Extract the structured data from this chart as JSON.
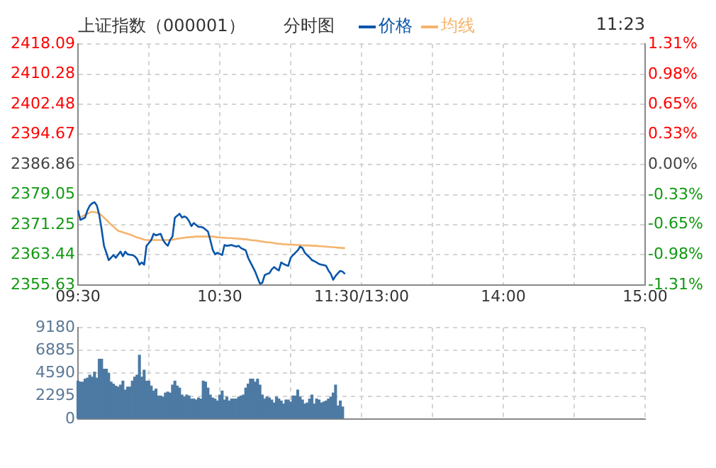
{
  "chart_data": [
    {
      "type": "line",
      "title": "上证指数（000001）",
      "subtitle": "分时图",
      "annotations": [
        "11:23"
      ],
      "legend": "top",
      "grid": true,
      "categories": [
        "09:30",
        null,
        null,
        null,
        null,
        null,
        null,
        null,
        null,
        null,
        null,
        null,
        null,
        null,
        null,
        null,
        null,
        null,
        null,
        null,
        null,
        null,
        null,
        null,
        null,
        null,
        null,
        null,
        null,
        null,
        null,
        null,
        null,
        null,
        null,
        null,
        null,
        null,
        null,
        null,
        null,
        null,
        null,
        null,
        null,
        null,
        null,
        null,
        null,
        null,
        null,
        null,
        null,
        null,
        null,
        null,
        null,
        null,
        null,
        null,
        "10:30",
        null,
        null,
        null,
        null,
        null,
        null,
        null,
        null,
        null,
        null,
        null,
        null,
        null,
        null,
        null,
        null,
        null,
        null,
        null,
        null,
        null,
        null,
        null,
        null,
        null,
        null,
        null,
        null,
        null,
        null,
        null,
        null,
        null,
        null,
        null,
        null,
        null,
        null,
        null,
        null,
        null,
        null,
        null,
        null,
        null,
        null,
        null,
        null,
        null,
        null,
        null,
        null,
        null,
        null,
        null,
        null,
        null,
        null,
        null,
        "11:30/13:00",
        null,
        null,
        null,
        null,
        null,
        null,
        null,
        null,
        null,
        null,
        null,
        null,
        null,
        null,
        null,
        null,
        null,
        null,
        null,
        null,
        null,
        null,
        null,
        null,
        null,
        null,
        null,
        null,
        null,
        null,
        null,
        null,
        null,
        null,
        null,
        null,
        null,
        null,
        null,
        null,
        null,
        null,
        null,
        null,
        null,
        null,
        null,
        null,
        null,
        null,
        null,
        null,
        null,
        null,
        null,
        null,
        null,
        null,
        null,
        "14:00",
        null,
        null,
        null,
        null,
        null,
        null,
        null,
        null,
        null,
        null,
        null,
        null,
        null,
        null,
        null,
        null,
        null,
        null,
        null,
        null,
        null,
        null,
        null,
        null,
        null,
        null,
        null,
        null,
        null,
        null,
        null,
        null,
        null,
        null,
        null,
        null,
        null,
        null,
        null,
        null,
        null,
        null,
        null,
        null,
        null,
        null,
        null,
        null,
        null,
        null,
        null,
        null,
        null,
        null,
        null,
        null,
        null,
        null,
        null,
        "15:00"
      ],
      "ylim": [
        2355.63,
        2418.09
      ],
      "yticks": [
        2355.63,
        2363.44,
        2371.25,
        2379.05,
        2386.86,
        2394.67,
        2402.48,
        2410.28,
        2418.09
      ],
      "y2lim": [
        -1.31,
        1.31
      ],
      "y2ticks": [
        {
          "value": -1.31,
          "label": "-1.31%"
        },
        {
          "value": -0.98,
          "label": "-0.98%"
        },
        {
          "value": -0.65,
          "label": "-0.65%"
        },
        {
          "value": -0.33,
          "label": "-0.33%"
        },
        {
          "value": 0,
          "label": "0.00%"
        },
        {
          "value": 0.33,
          "label": "0.33%"
        },
        {
          "value": 0.65,
          "label": "0.65%"
        },
        {
          "value": 0.98,
          "label": "0.98%"
        },
        {
          "value": 1.31,
          "label": "1.31%"
        }
      ],
      "series": [
        {
          "name": "价格",
          "color": "#0a56a8",
          "values": [
            2375.0,
            2372.5,
            2372.8,
            2373.1,
            2375.0,
            2376.2,
            2376.8,
            2377.1,
            2376.2,
            2373.8,
            2370.1,
            2365.8,
            2364.0,
            2362.1,
            2362.7,
            2363.4,
            2362.7,
            2363.5,
            2364.3,
            2363.1,
            2364.3,
            2363.6,
            2363.5,
            2363.4,
            2363.1,
            2362.4,
            2360.9,
            2361.5,
            2360.9,
            2365.8,
            2366.5,
            2367.3,
            2368.9,
            2368.5,
            2368.7,
            2368.9,
            2367.3,
            2366.4,
            2365.8,
            2367.3,
            2368.2,
            2373.1,
            2373.6,
            2374.1,
            2373.1,
            2373.4,
            2373.1,
            2372.2,
            2370.9,
            2371.7,
            2371.2,
            2370.7,
            2370.7,
            2370.5,
            2370.0,
            2369.5,
            2367.3,
            2364.8,
            2363.6,
            2364.0,
            2363.7,
            2363.4,
            2366.0,
            2365.8,
            2365.9,
            2366.0,
            2365.8,
            2365.6,
            2365.8,
            2365.2,
            2364.9,
            2364.6,
            2362.7,
            2361.5,
            2360.3,
            2359.1,
            2357.5,
            2356.0,
            2356.2,
            2358.2,
            2358.5,
            2358.7,
            2359.7,
            2360.3,
            2359.8,
            2359.4,
            2361.5,
            2361.1,
            2360.8,
            2360.6,
            2362.7,
            2363.4,
            2364.0,
            2364.6,
            2365.6,
            2365.2,
            2364.0,
            2363.4,
            2362.8,
            2362.1,
            2361.8,
            2361.5,
            2361.1,
            2360.9,
            2360.8,
            2360.6,
            2359.4,
            2358.5,
            2357.0,
            2358.0,
            2358.7,
            2359.3,
            2359.1,
            2358.5,
            null,
            null,
            null,
            null,
            null,
            null,
            null,
            null,
            null,
            null,
            null,
            null,
            null,
            null,
            null,
            null,
            null,
            null,
            null,
            null,
            null,
            null,
            null,
            null,
            null,
            null,
            null,
            null,
            null,
            null,
            null,
            null,
            null,
            null,
            null,
            null,
            null,
            null,
            null,
            null,
            null,
            null,
            null,
            null,
            null,
            null,
            null,
            null,
            null,
            null,
            null,
            null,
            null,
            null,
            null,
            null,
            null,
            null,
            null,
            null,
            null,
            null,
            null,
            null,
            null,
            null,
            null,
            null,
            null,
            null,
            null,
            null,
            null,
            null,
            null,
            null,
            null,
            null,
            null,
            null,
            null,
            null,
            null,
            null,
            null,
            null,
            null,
            null,
            null,
            null,
            null,
            null,
            null,
            null,
            null,
            null,
            null,
            null,
            null,
            null,
            null,
            null,
            null,
            null,
            null,
            null,
            null,
            null,
            null,
            null,
            null,
            null,
            null,
            null,
            null,
            null,
            null,
            null,
            null,
            null,
            null,
            null,
            null,
            null,
            null,
            null,
            null
          ]
        },
        {
          "name": "均线",
          "color": "#f5b46e",
          "values": [
            2373.1,
            2373.1,
            2373.5,
            2373.8,
            2374.1,
            2374.4,
            2374.6,
            2374.5,
            2374.4,
            2374.2,
            2373.7,
            2373.1,
            2372.5,
            2371.9,
            2371.3,
            2370.8,
            2370.2,
            2369.7,
            2369.5,
            2369.3,
            2369.1,
            2368.9,
            2368.7,
            2368.5,
            2368.2,
            2368.0,
            2367.8,
            2367.6,
            2367.4,
            2367.3,
            2367.3,
            2367.3,
            2367.3,
            2367.3,
            2367.3,
            2367.3,
            2367.3,
            2367.3,
            2367.3,
            2367.3,
            2367.4,
            2367.5,
            2367.6,
            2367.7,
            2367.8,
            2367.9,
            2368.0,
            2368.0,
            2368.1,
            2368.1,
            2368.2,
            2368.2,
            2368.2,
            2368.2,
            2368.2,
            2368.2,
            2368.2,
            2368.2,
            2368.1,
            2368.0,
            2368.0,
            2367.9,
            2367.9,
            2367.8,
            2367.8,
            2367.8,
            2367.7,
            2367.7,
            2367.6,
            2367.6,
            2367.5,
            2367.5,
            2367.4,
            2367.3,
            2367.2,
            2367.2,
            2367.1,
            2367.0,
            2366.9,
            2366.8,
            2366.7,
            2366.7,
            2366.6,
            2366.5,
            2366.4,
            2366.3,
            2366.3,
            2366.2,
            2366.2,
            2366.1,
            2366.1,
            2366.1,
            2366.0,
            2366.0,
            2366.0,
            2365.9,
            2365.9,
            2365.9,
            2365.9,
            2365.8,
            2365.8,
            2365.8,
            2365.7,
            2365.7,
            2365.6,
            2365.6,
            2365.5,
            2365.5,
            2365.4,
            2365.4,
            2365.3,
            2365.3,
            2365.2,
            2365.2,
            null,
            null,
            null,
            null,
            null,
            null,
            null,
            null,
            null,
            null,
            null,
            null,
            null,
            null,
            null,
            null,
            null,
            null,
            null,
            null,
            null,
            null,
            null,
            null,
            null,
            null,
            null,
            null,
            null,
            null,
            null,
            null,
            null,
            null,
            null,
            null,
            null,
            null,
            null,
            null,
            null,
            null,
            null,
            null,
            null,
            null,
            null,
            null,
            null,
            null,
            null,
            null,
            null,
            null,
            null,
            null,
            null,
            null,
            null,
            null,
            null,
            null,
            null,
            null,
            null,
            null,
            null,
            null,
            null,
            null,
            null,
            null,
            null,
            null,
            null,
            null,
            null,
            null,
            null,
            null,
            null,
            null,
            null,
            null,
            null,
            null,
            null,
            null,
            null,
            null,
            null,
            null,
            null,
            null,
            null,
            null,
            null,
            null,
            null,
            null,
            null,
            null,
            null,
            null,
            null,
            null,
            null,
            null,
            null,
            null,
            null,
            null,
            null,
            null,
            null,
            null,
            null,
            null,
            null,
            null,
            null,
            null,
            null,
            null,
            null,
            null,
            null
          ]
        }
      ]
    },
    {
      "type": "bar",
      "grid": true,
      "tick_labels": "y",
      "color": "#4d7aa3",
      "categories": [
        null,
        null,
        null,
        null,
        null,
        null,
        null,
        null,
        null,
        null,
        null,
        null,
        null,
        null,
        null,
        null,
        null,
        null,
        null,
        null,
        null,
        null,
        null,
        null,
        null,
        null,
        null,
        null,
        null,
        null,
        null,
        null,
        null,
        null,
        null,
        null,
        null,
        null,
        null,
        null,
        null,
        null,
        null,
        null,
        null,
        null,
        null,
        null,
        null,
        null,
        null,
        null,
        null,
        null,
        null,
        null,
        null,
        null,
        null,
        null,
        null,
        null,
        null,
        null,
        null,
        null,
        null,
        null,
        null,
        null,
        null,
        null,
        null,
        null,
        null,
        null,
        null,
        null,
        null,
        null,
        null,
        null,
        null,
        null,
        null,
        null,
        null,
        null,
        null,
        null,
        null,
        null,
        null,
        null,
        null,
        null,
        null,
        null,
        null,
        null,
        null,
        null,
        null,
        null,
        null,
        null,
        null,
        null,
        null,
        null,
        null,
        null,
        null,
        null,
        null,
        null,
        null,
        null,
        null,
        null,
        null,
        null,
        null,
        null,
        null,
        null,
        null,
        null,
        null,
        null,
        null,
        null,
        null,
        null,
        null,
        null,
        null,
        null,
        null,
        null,
        null,
        null,
        null,
        null,
        null,
        null,
        null,
        null,
        null,
        null,
        null,
        null,
        null,
        null,
        null,
        null,
        null,
        null,
        null,
        null,
        null,
        null,
        null,
        null,
        null,
        null,
        null,
        null,
        null,
        null,
        null,
        null,
        null,
        null,
        null,
        null,
        null,
        null,
        null,
        null,
        null,
        null,
        null,
        null,
        null,
        null,
        null,
        null,
        null,
        null,
        null,
        null,
        null,
        null,
        null,
        null,
        null,
        null,
        null,
        null,
        null,
        null,
        null,
        null,
        null,
        null,
        null,
        null,
        null,
        null,
        null,
        null,
        null,
        null,
        null,
        null,
        null,
        null,
        null,
        null,
        null,
        null,
        null,
        null,
        null,
        null,
        null,
        null,
        null,
        null,
        null,
        null,
        null,
        null,
        null,
        null,
        null,
        null,
        null,
        null,
        null
      ],
      "ylim": [
        0,
        9180
      ],
      "yticks": [
        0,
        2295,
        4590,
        6885,
        9180
      ],
      "values": [
        3800,
        3700,
        3700,
        4000,
        4100,
        4400,
        4200,
        4700,
        4100,
        6000,
        6000,
        5000,
        5000,
        4600,
        3700,
        3500,
        3300,
        3200,
        3400,
        3800,
        2900,
        3200,
        3200,
        3800,
        4200,
        4400,
        6400,
        4200,
        4900,
        3800,
        3800,
        3300,
        2800,
        3000,
        2300,
        2300,
        2200,
        2600,
        2700,
        2600,
        3400,
        3800,
        3300,
        3100,
        2400,
        2200,
        2400,
        2300,
        2000,
        2000,
        1900,
        2100,
        2000,
        3800,
        3700,
        3100,
        2400,
        2100,
        2000,
        1800,
        2400,
        2800,
        1900,
        2200,
        1800,
        2000,
        2000,
        2000,
        2200,
        2300,
        2400,
        3100,
        3500,
        4000,
        4000,
        3700,
        4000,
        3400,
        2400,
        2000,
        2200,
        2100,
        1900,
        1600,
        2200,
        2000,
        1800,
        1500,
        1900,
        1900,
        1700,
        2300,
        2300,
        2900,
        2200,
        1900,
        1500,
        1600,
        2000,
        2400,
        1500,
        2000,
        1900,
        1600,
        1700,
        1800,
        2000,
        2200,
        2600,
        3400,
        1300,
        1800,
        1200,
        null,
        null,
        null,
        null,
        null,
        null,
        null,
        null,
        null,
        null,
        null,
        null,
        null,
        null,
        null,
        null,
        null,
        null,
        null,
        null,
        null,
        null,
        null,
        null,
        null,
        null,
        null,
        null,
        null,
        null,
        null,
        null,
        null,
        null,
        null,
        null,
        null,
        null,
        null,
        null,
        null,
        null,
        null,
        null,
        null,
        null,
        null,
        null,
        null,
        null,
        null,
        null,
        null,
        null,
        null,
        null,
        null,
        null,
        null,
        null,
        null,
        null,
        null,
        null,
        null,
        null,
        null,
        null,
        null,
        null,
        null,
        null,
        null,
        null,
        null,
        null,
        null,
        null,
        null,
        null,
        null,
        null,
        null,
        null,
        null,
        null,
        null,
        null,
        null,
        null,
        null,
        null,
        null,
        null,
        null,
        null,
        null,
        null,
        null,
        null,
        null,
        null,
        null,
        null,
        null,
        null,
        null,
        null,
        null,
        null,
        null,
        null,
        null,
        null,
        null,
        null,
        null,
        null,
        null,
        null,
        null,
        null,
        null,
        null,
        null,
        null,
        null,
        null
      ]
    }
  ]
}
